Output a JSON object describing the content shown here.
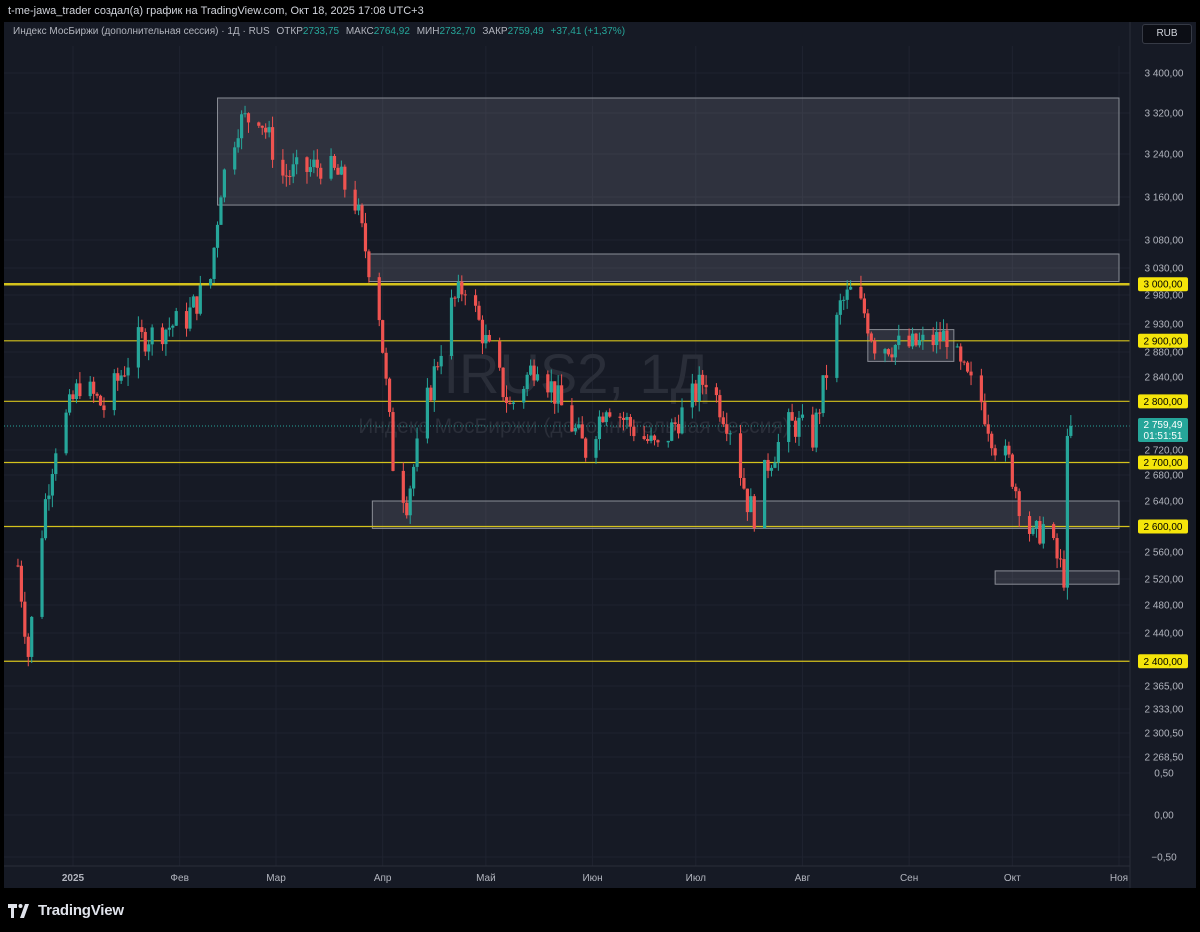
{
  "header": {
    "credit": "t-me-jawa_trader создал(а) график на TradingView.com, Окт 18, 2025 17:08 UTC+3",
    "currency_button": "RUB"
  },
  "legend": {
    "symbol": "Индекс МосБиржи (дополнительная сессия) · 1Д · RUS",
    "open_label": "ОТКР",
    "open": "2733,75",
    "high_label": "МАКС",
    "high": "2764,92",
    "low_label": "МИН",
    "low": "2732,70",
    "close_label": "ЗАКР",
    "close": "2759,49",
    "change": "+37,41 (+1,37%)"
  },
  "watermark": {
    "ticker": "IRUS2, 1Д",
    "name": "Индекс МосБиржи (дополнительная сессия)"
  },
  "footer": {
    "brand": "TradingView"
  },
  "colors": {
    "up": "#26a69a",
    "down": "#ef5350",
    "level_line": "#d4c21c",
    "level_badge": "#f5e50a",
    "background": "#161a25"
  },
  "chart_data": {
    "type": "candlestick",
    "axis_ticks": [
      {
        "label": "3 400,00",
        "value": 3400
      },
      {
        "label": "3 320,00",
        "value": 3320
      },
      {
        "label": "3 240,00",
        "value": 3240
      },
      {
        "label": "3 160,00",
        "value": 3160
      },
      {
        "label": "3 080,00",
        "value": 3080
      },
      {
        "label": "3 030,00",
        "value": 3030
      },
      {
        "label": "2 980,00",
        "value": 2980
      },
      {
        "label": "2 930,00",
        "value": 2930
      },
      {
        "label": "2 880,00",
        "value": 2880
      },
      {
        "label": "2 840,00",
        "value": 2840
      },
      {
        "label": "2 720,00",
        "value": 2720
      },
      {
        "label": "2 680,00",
        "value": 2680
      },
      {
        "label": "2 640,00",
        "value": 2640
      },
      {
        "label": "2 560,00",
        "value": 2560
      },
      {
        "label": "2 520,00",
        "value": 2520
      },
      {
        "label": "2 480,00",
        "value": 2480
      },
      {
        "label": "2 440,00",
        "value": 2440
      },
      {
        "label": "2 365,00",
        "value": 2365
      },
      {
        "label": "2 333,00",
        "value": 2333
      },
      {
        "label": "2 300,50",
        "value": 2300.5
      },
      {
        "label": "2 268,50",
        "value": 2268.5
      },
      {
        "label": "0,50",
        "value": 0.5
      },
      {
        "label": "0,00",
        "value": 0
      },
      {
        "label": "−0,50",
        "value": -0.5
      }
    ],
    "levels": [
      {
        "label": "3 000,00",
        "value": 3000
      },
      {
        "label": "2 900,00",
        "value": 2900
      },
      {
        "label": "2 800,00",
        "value": 2800
      },
      {
        "label": "2 700,00",
        "value": 2700
      },
      {
        "label": "2 600,00",
        "value": 2600
      },
      {
        "label": "2 400,00",
        "value": 2400
      }
    ],
    "current_price": {
      "label": "2 759,49",
      "value": 2759.49,
      "timer": "01:51:51"
    },
    "months": [
      {
        "label": "2025",
        "date": "2025-01-01"
      },
      {
        "label": "Фев",
        "date": "2025-02-01"
      },
      {
        "label": "Мар",
        "date": "2025-03-01"
      },
      {
        "label": "Апр",
        "date": "2025-04-01"
      },
      {
        "label": "Май",
        "date": "2025-05-01"
      },
      {
        "label": "Июн",
        "date": "2025-06-01"
      },
      {
        "label": "Июл",
        "date": "2025-07-01"
      },
      {
        "label": "Авг",
        "date": "2025-08-01"
      },
      {
        "label": "Сен",
        "date": "2025-09-01"
      },
      {
        "label": "Окт",
        "date": "2025-10-01"
      },
      {
        "label": "Ноя",
        "date": "2025-11-01"
      }
    ],
    "zones": [
      {
        "from": "2025-02-12",
        "to": "2025-11-01",
        "top": 3350,
        "bottom": 3145
      },
      {
        "from": "2025-03-28",
        "to": "2025-11-01",
        "top": 3055,
        "bottom": 3005
      },
      {
        "from": "2025-08-20",
        "to": "2025-09-14",
        "top": 2920,
        "bottom": 2865
      },
      {
        "from": "2025-03-29",
        "to": "2025-11-01",
        "top": 2640,
        "bottom": 2597
      },
      {
        "from": "2025-09-26",
        "to": "2025-11-01",
        "top": 2532,
        "bottom": 2512
      }
    ],
    "anchors": [
      {
        "date": "2024-12-16",
        "close": 2540
      },
      {
        "date": "2024-12-19",
        "close": 2410
      },
      {
        "date": "2024-12-24",
        "close": 2640
      },
      {
        "date": "2024-12-27",
        "close": 2730
      },
      {
        "date": "2025-01-03",
        "close": 2830
      },
      {
        "date": "2025-01-10",
        "close": 2790
      },
      {
        "date": "2025-01-20",
        "close": 2900
      },
      {
        "date": "2025-02-03",
        "close": 2940
      },
      {
        "date": "2025-02-10",
        "close": 3010
      },
      {
        "date": "2025-02-13",
        "close": 3180
      },
      {
        "date": "2025-02-18",
        "close": 3300
      },
      {
        "date": "2025-02-24",
        "close": 3320
      },
      {
        "date": "2025-03-03",
        "close": 3200
      },
      {
        "date": "2025-03-10",
        "close": 3210
      },
      {
        "date": "2025-03-14",
        "close": 3220
      },
      {
        "date": "2025-03-19",
        "close": 3200
      },
      {
        "date": "2025-03-24",
        "close": 3150
      },
      {
        "date": "2025-03-31",
        "close": 2950
      },
      {
        "date": "2025-04-04",
        "close": 2700
      },
      {
        "date": "2025-04-08",
        "close": 2640
      },
      {
        "date": "2025-04-14",
        "close": 2800
      },
      {
        "date": "2025-04-21",
        "close": 2960
      },
      {
        "date": "2025-04-25",
        "close": 3000
      },
      {
        "date": "2025-05-02",
        "close": 2880
      },
      {
        "date": "2025-05-08",
        "close": 2790
      },
      {
        "date": "2025-05-16",
        "close": 2870
      },
      {
        "date": "2025-05-23",
        "close": 2790
      },
      {
        "date": "2025-05-30",
        "close": 2720
      },
      {
        "date": "2025-06-05",
        "close": 2800
      },
      {
        "date": "2025-06-12",
        "close": 2760
      },
      {
        "date": "2025-06-20",
        "close": 2720
      },
      {
        "date": "2025-06-27",
        "close": 2780
      },
      {
        "date": "2025-07-04",
        "close": 2840
      },
      {
        "date": "2025-07-11",
        "close": 2760
      },
      {
        "date": "2025-07-16",
        "close": 2640
      },
      {
        "date": "2025-07-18",
        "close": 2620
      },
      {
        "date": "2025-07-22",
        "close": 2700
      },
      {
        "date": "2025-07-28",
        "close": 2760
      },
      {
        "date": "2025-07-31",
        "close": 2760
      },
      {
        "date": "2025-08-04",
        "close": 2740
      },
      {
        "date": "2025-08-07",
        "close": 2820
      },
      {
        "date": "2025-08-12",
        "close": 2960
      },
      {
        "date": "2025-08-15",
        "close": 2985
      },
      {
        "date": "2025-08-19",
        "close": 2950
      },
      {
        "date": "2025-08-22",
        "close": 2895
      },
      {
        "date": "2025-09-01",
        "close": 2890
      },
      {
        "date": "2025-09-08",
        "close": 2900
      },
      {
        "date": "2025-09-12",
        "close": 2910
      },
      {
        "date": "2025-09-16",
        "close": 2850
      },
      {
        "date": "2025-09-22",
        "close": 2800
      },
      {
        "date": "2025-09-26",
        "close": 2730
      },
      {
        "date": "2025-09-30",
        "close": 2700
      },
      {
        "date": "2025-10-03",
        "close": 2640
      },
      {
        "date": "2025-10-07",
        "close": 2580
      },
      {
        "date": "2025-10-10",
        "close": 2600
      },
      {
        "date": "2025-10-14",
        "close": 2550
      },
      {
        "date": "2025-10-16",
        "close": 2525
      },
      {
        "date": "2025-10-17",
        "close": 2722
      },
      {
        "date": "2025-10-18",
        "close": 2759.49
      }
    ]
  }
}
